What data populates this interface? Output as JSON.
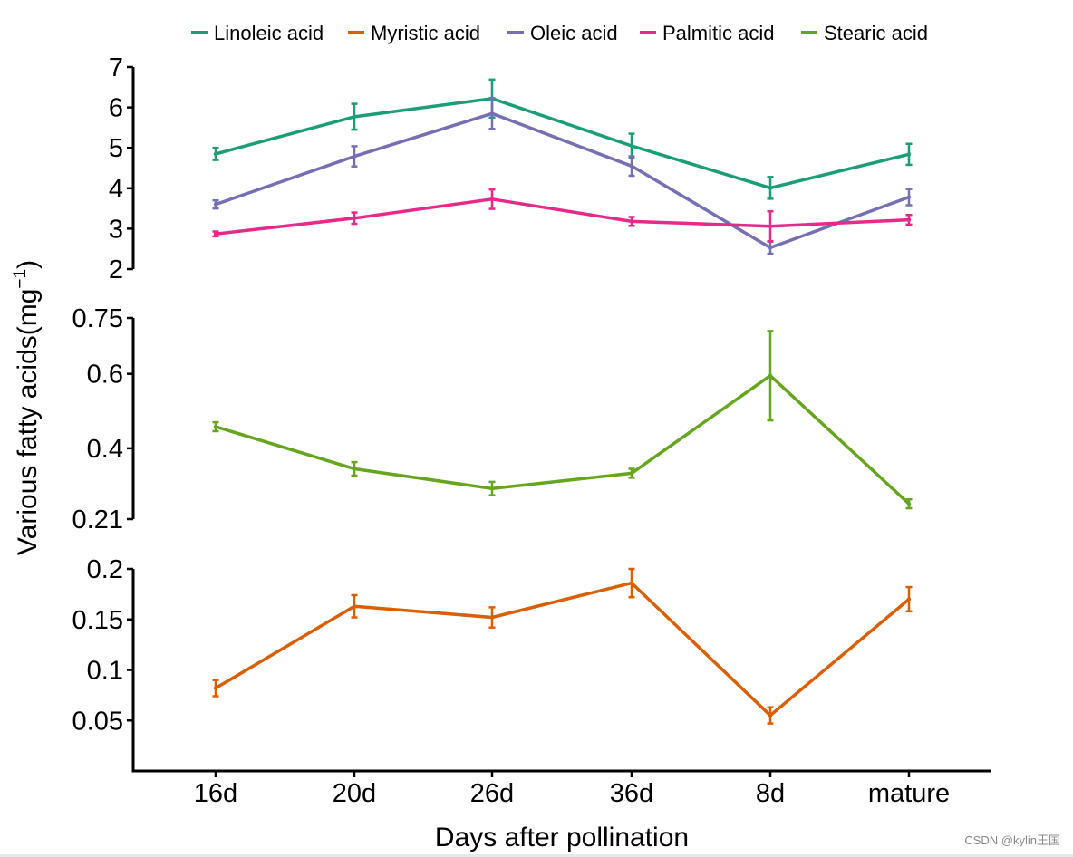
{
  "chart_data": {
    "type": "line",
    "xlabel": "Days after pollination",
    "ylabel": "Various fatty acids(mg",
    "ylabel_sup": "−1",
    "ylabel_close": ")",
    "categories": [
      "16d",
      "20d",
      "26d",
      "36d",
      "8d",
      "mature"
    ],
    "legend": {
      "position": "top",
      "entries": [
        {
          "name": "Linoleic acid",
          "color": "#1b9e77"
        },
        {
          "name": "Myristic acid",
          "color": "#d95f02"
        },
        {
          "name": "Oleic acid",
          "color": "#7570b3"
        },
        {
          "name": "Palmitic acid",
          "color": "#e7298a"
        },
        {
          "name": "Stearic acid",
          "color": "#66a61e"
        }
      ]
    },
    "panels": [
      {
        "id": "top",
        "ylim": [
          2,
          7
        ],
        "yticks": [
          2,
          3,
          4,
          5,
          6,
          7
        ],
        "ytick_labels": [
          "2",
          "3",
          "4",
          "5",
          "6",
          "7"
        ],
        "series": [
          {
            "name": "Linoleic acid",
            "color": "#1b9e77",
            "values": [
              4.85,
              5.77,
              6.22,
              5.05,
              4.01,
              4.84
            ],
            "errors": [
              0.15,
              0.32,
              0.47,
              0.3,
              0.27,
              0.26
            ]
          },
          {
            "name": "Oleic acid",
            "color": "#7570b3",
            "values": [
              3.6,
              4.79,
              5.85,
              4.55,
              2.53,
              3.78
            ],
            "errors": [
              0.1,
              0.25,
              0.38,
              0.24,
              0.15,
              0.2
            ]
          },
          {
            "name": "Palmitic acid",
            "color": "#e7298a",
            "values": [
              2.87,
              3.26,
              3.73,
              3.18,
              3.06,
              3.22
            ],
            "errors": [
              0.06,
              0.14,
              0.24,
              0.11,
              0.37,
              0.12
            ]
          }
        ]
      },
      {
        "id": "middle",
        "ylim": [
          0.21,
          0.75
        ],
        "yticks": [
          0.21,
          0.4,
          0.6,
          0.75
        ],
        "ytick_labels": [
          "0.21",
          "0.4",
          "0.6",
          "0.75"
        ],
        "series": [
          {
            "name": "Stearic acid",
            "color": "#66a61e",
            "values": [
              0.458,
              0.345,
              0.292,
              0.333,
              0.595,
              0.251
            ],
            "errors": [
              0.012,
              0.018,
              0.018,
              0.012,
              0.12,
              0.012
            ]
          }
        ]
      },
      {
        "id": "bottom",
        "ylim": [
          0,
          0.2
        ],
        "yticks": [
          0.05,
          0.1,
          0.15,
          0.2
        ],
        "ytick_labels": [
          "0.05",
          "0.1",
          "0.15",
          "0.2"
        ],
        "series": [
          {
            "name": "Myristic acid",
            "color": "#d95f02",
            "values": [
              0.082,
              0.163,
              0.152,
              0.186,
              0.055,
              0.17
            ],
            "errors": [
              0.008,
              0.011,
              0.01,
              0.014,
              0.008,
              0.012
            ]
          }
        ]
      }
    ]
  },
  "watermark": "CSDN @kylin王国"
}
